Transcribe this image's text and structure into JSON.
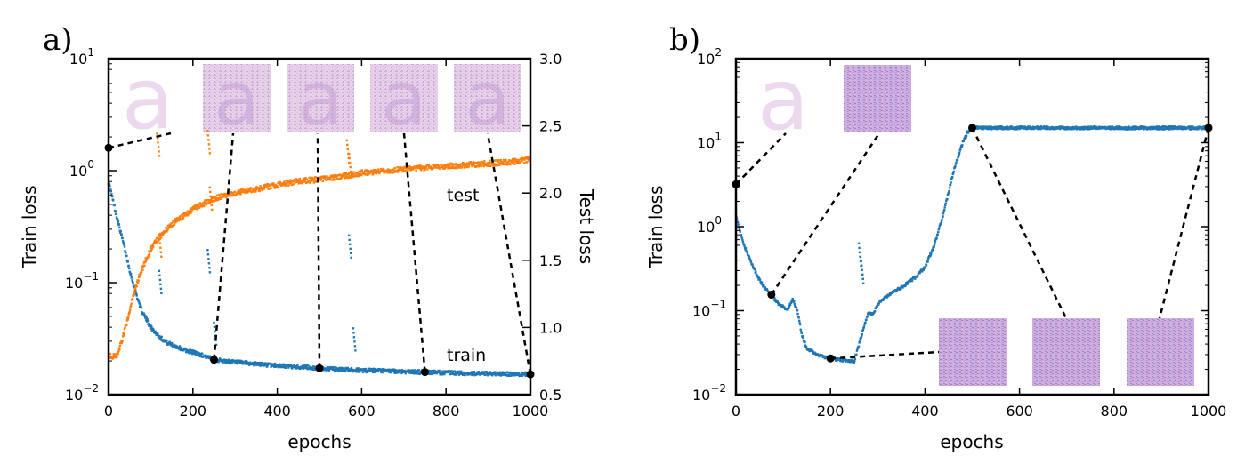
{
  "chart_data": [
    {
      "panel_label": "a)",
      "type": "scatter",
      "xlabel": "epochs",
      "ylabel": "Train loss",
      "ylabel_right": "Test loss",
      "xlim": [
        0,
        1000
      ],
      "ylim": [
        0.01,
        10
      ],
      "yscale": "log",
      "ylim_right": [
        0.5,
        3.0
      ],
      "xticks": [
        "0",
        "200",
        "400",
        "600",
        "800",
        "1000"
      ],
      "yticks_left": [
        {
          "base": "10",
          "exp": "−2"
        },
        {
          "base": "10",
          "exp": "−1"
        },
        {
          "base": "10",
          "exp": "0"
        },
        {
          "base": "10",
          "exp": "1"
        }
      ],
      "yticks_right": [
        "0.5",
        "1.0",
        "1.5",
        "2.0",
        "2.5",
        "3.0"
      ],
      "series": [
        {
          "name": "train",
          "axis": "left",
          "color": "#1f77b4",
          "x": [
            0,
            10,
            20,
            30,
            40,
            50,
            60,
            70,
            80,
            100,
            120,
            140,
            160,
            180,
            200,
            230,
            250,
            300,
            350,
            400,
            450,
            500,
            550,
            600,
            650,
            700,
            750,
            800,
            850,
            900,
            950,
            1000
          ],
          "y": [
            0.8,
            0.55,
            0.38,
            0.27,
            0.19,
            0.13,
            0.094,
            0.07,
            0.055,
            0.04,
            0.033,
            0.029,
            0.027,
            0.025,
            0.024,
            0.022,
            0.0205,
            0.0195,
            0.0188,
            0.0182,
            0.0177,
            0.0172,
            0.0168,
            0.0165,
            0.0163,
            0.0161,
            0.0159,
            0.0157,
            0.0155,
            0.0154,
            0.0153,
            0.0152
          ],
          "spikes": [
            [
              120,
              0.13
            ],
            [
              235,
              0.2
            ],
            [
              250,
              0.045
            ],
            [
              570,
              0.27
            ],
            [
              580,
              0.04
            ]
          ]
        },
        {
          "name": "test",
          "axis": "right",
          "color": "#ff7f0e",
          "x": [
            0,
            10,
            20,
            30,
            40,
            50,
            60,
            70,
            80,
            100,
            120,
            150,
            200,
            250,
            300,
            350,
            400,
            450,
            500,
            550,
            600,
            650,
            700,
            750,
            800,
            850,
            900,
            950,
            1000
          ],
          "y": [
            0.8,
            0.78,
            0.8,
            0.88,
            1.0,
            1.12,
            1.25,
            1.35,
            1.44,
            1.58,
            1.67,
            1.77,
            1.88,
            1.96,
            2.0,
            2.03,
            2.06,
            2.09,
            2.1,
            2.12,
            2.15,
            2.16,
            2.18,
            2.19,
            2.2,
            2.21,
            2.22,
            2.23,
            2.25
          ],
          "spikes": [
            [
              115,
              2.45
            ],
            [
              120,
              1.7
            ],
            [
              235,
              2.47
            ],
            [
              240,
              2.05
            ],
            [
              565,
              2.4
            ],
            [
              570,
              2.3
            ]
          ]
        }
      ],
      "markers": [
        {
          "x": 0,
          "y": 1.6
        },
        {
          "x": 250,
          "y": 0.0205
        },
        {
          "x": 500,
          "y": 0.0172
        },
        {
          "x": 750,
          "y": 0.0159
        },
        {
          "x": 1000,
          "y": 0.0152
        }
      ],
      "thumbnails": [
        "a",
        "a",
        "a",
        "a",
        "a"
      ],
      "annotations": [
        {
          "text": "test",
          "x": 800,
          "y": 2.0
        },
        {
          "text": "train",
          "x": 800,
          "y": 0.019
        }
      ]
    },
    {
      "panel_label": "b)",
      "type": "scatter",
      "xlabel": "epochs",
      "ylabel": "Train loss",
      "xlim": [
        0,
        1000
      ],
      "ylim": [
        0.01,
        100
      ],
      "yscale": "log",
      "xticks": [
        "0",
        "200",
        "400",
        "600",
        "800",
        "1000"
      ],
      "yticks_left": [
        {
          "base": "10",
          "exp": "−2"
        },
        {
          "base": "10",
          "exp": "−1"
        },
        {
          "base": "10",
          "exp": "0"
        },
        {
          "base": "10",
          "exp": "1"
        },
        {
          "base": "10",
          "exp": "2"
        }
      ],
      "series": [
        {
          "name": "train",
          "axis": "left",
          "color": "#1f77b4",
          "x": [
            0,
            10,
            20,
            30,
            40,
            50,
            60,
            75,
            90,
            100,
            110,
            120,
            130,
            140,
            150,
            170,
            200,
            220,
            250,
            280,
            290,
            300,
            320,
            350,
            380,
            400,
            420,
            440,
            460,
            480,
            490,
            500,
            520,
            600,
            700,
            800,
            900,
            1000
          ],
          "y": [
            1.4,
            0.8,
            0.55,
            0.4,
            0.3,
            0.23,
            0.19,
            0.155,
            0.12,
            0.11,
            0.1,
            0.14,
            0.1,
            0.05,
            0.036,
            0.03,
            0.027,
            0.026,
            0.025,
            0.095,
            0.09,
            0.12,
            0.15,
            0.19,
            0.25,
            0.33,
            0.6,
            1.5,
            4.5,
            10,
            13,
            15,
            15,
            15,
            15,
            15,
            15,
            15
          ],
          "spikes": [
            [
              260,
              0.65
            ],
            [
              265,
              0.4
            ]
          ]
        }
      ],
      "markers": [
        {
          "x": 0,
          "y": 3.2
        },
        {
          "x": 75,
          "y": 0.155
        },
        {
          "x": 200,
          "y": 0.027
        },
        {
          "x": 500,
          "y": 15
        },
        {
          "x": 1000,
          "y": 15
        }
      ],
      "thumbnails": [
        "a",
        "",
        "",
        "",
        ""
      ]
    }
  ]
}
